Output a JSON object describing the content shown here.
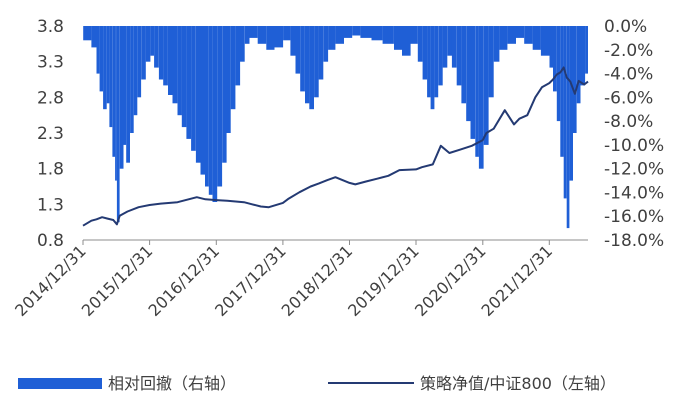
{
  "chart_data": {
    "type": "bar+line",
    "x_ticks": [
      "2014/12/31",
      "2015/12/31",
      "2016/12/31",
      "2017/12/31",
      "2018/12/31",
      "2019/12/31",
      "2020/12/31",
      "2021/12/31"
    ],
    "x_range": [
      "2014-12-31",
      "2022-07-31"
    ],
    "left_axis": {
      "ticks": [
        "3.8",
        "3.3",
        "2.8",
        "2.3",
        "1.8",
        "1.3",
        "0.8"
      ],
      "ylim": [
        0.8,
        3.8
      ]
    },
    "right_axis": {
      "ticks": [
        "0.0%",
        "-2.0%",
        "-4.0%",
        "-6.0%",
        "-8.0%",
        "-10.0%",
        "-12.0%",
        "-14.0%",
        "-16.0%",
        "-18.0%"
      ],
      "ylim": [
        -18,
        0
      ]
    },
    "series": [
      {
        "name": "相对回撤（右轴）",
        "type": "bar",
        "axis": "right",
        "color": "#1f5fd6",
        "points": [
          [
            "2015-01-01",
            -1.2
          ],
          [
            "2015-02-15",
            -1.8
          ],
          [
            "2015-03-15",
            -4.0
          ],
          [
            "2015-04-01",
            -5.5
          ],
          [
            "2015-04-20",
            -7.0
          ],
          [
            "2015-05-10",
            -6.5
          ],
          [
            "2015-05-25",
            -8.5
          ],
          [
            "2015-06-10",
            -11.0
          ],
          [
            "2015-06-25",
            -13.0
          ],
          [
            "2015-07-05",
            -16.5
          ],
          [
            "2015-07-20",
            -12.0
          ],
          [
            "2015-08-10",
            -10.0
          ],
          [
            "2015-08-25",
            -11.5
          ],
          [
            "2015-09-15",
            -9.0
          ],
          [
            "2015-10-05",
            -7.5
          ],
          [
            "2015-10-25",
            -6.0
          ],
          [
            "2015-11-15",
            -4.5
          ],
          [
            "2015-12-10",
            -3.0
          ],
          [
            "2016-01-05",
            -2.5
          ],
          [
            "2016-01-25",
            -3.5
          ],
          [
            "2016-02-20",
            -4.5
          ],
          [
            "2016-03-15",
            -5.0
          ],
          [
            "2016-04-10",
            -5.8
          ],
          [
            "2016-05-05",
            -6.5
          ],
          [
            "2016-06-01",
            -7.5
          ],
          [
            "2016-06-25",
            -8.5
          ],
          [
            "2016-07-20",
            -9.5
          ],
          [
            "2016-08-15",
            -10.5
          ],
          [
            "2016-09-10",
            -11.5
          ],
          [
            "2016-10-05",
            -12.5
          ],
          [
            "2016-10-30",
            -13.5
          ],
          [
            "2016-11-20",
            -14.2
          ],
          [
            "2016-12-10",
            -14.8
          ],
          [
            "2017-01-05",
            -13.5
          ],
          [
            "2017-02-01",
            -11.5
          ],
          [
            "2017-02-25",
            -9.0
          ],
          [
            "2017-03-20",
            -7.0
          ],
          [
            "2017-04-15",
            -5.0
          ],
          [
            "2017-05-10",
            -3.0
          ],
          [
            "2017-06-05",
            -1.5
          ],
          [
            "2017-07-01",
            -1.0
          ],
          [
            "2017-08-15",
            -1.5
          ],
          [
            "2017-10-01",
            -2.0
          ],
          [
            "2017-11-15",
            -1.8
          ],
          [
            "2018-01-01",
            -1.2
          ],
          [
            "2018-02-10",
            -2.5
          ],
          [
            "2018-03-10",
            -4.0
          ],
          [
            "2018-04-05",
            -5.5
          ],
          [
            "2018-05-01",
            -6.5
          ],
          [
            "2018-05-25",
            -7.0
          ],
          [
            "2018-06-20",
            -6.0
          ],
          [
            "2018-07-15",
            -4.5
          ],
          [
            "2018-08-10",
            -3.0
          ],
          [
            "2018-09-05",
            -2.0
          ],
          [
            "2018-10-15",
            -1.5
          ],
          [
            "2018-12-01",
            -1.0
          ],
          [
            "2019-01-15",
            -0.8
          ],
          [
            "2019-03-01",
            -1.0
          ],
          [
            "2019-05-01",
            -1.2
          ],
          [
            "2019-07-01",
            -1.5
          ],
          [
            "2019-09-01",
            -2.0
          ],
          [
            "2019-10-15",
            -2.5
          ],
          [
            "2019-12-01",
            -1.5
          ],
          [
            "2020-01-10",
            -3.0
          ],
          [
            "2020-02-05",
            -4.5
          ],
          [
            "2020-03-01",
            -6.0
          ],
          [
            "2020-03-20",
            -7.0
          ],
          [
            "2020-04-10",
            -6.0
          ],
          [
            "2020-05-01",
            -5.0
          ],
          [
            "2020-05-25",
            -3.5
          ],
          [
            "2020-06-20",
            -2.5
          ],
          [
            "2020-07-15",
            -3.5
          ],
          [
            "2020-08-10",
            -5.0
          ],
          [
            "2020-09-05",
            -6.5
          ],
          [
            "2020-10-01",
            -8.0
          ],
          [
            "2020-10-25",
            -9.5
          ],
          [
            "2020-11-20",
            -11.0
          ],
          [
            "2020-12-10",
            -12.0
          ],
          [
            "2021-01-05",
            -10.0
          ],
          [
            "2021-02-01",
            -6.0
          ],
          [
            "2021-03-01",
            -3.0
          ],
          [
            "2021-04-01",
            -2.0
          ],
          [
            "2021-05-15",
            -1.5
          ],
          [
            "2021-07-01",
            -1.0
          ],
          [
            "2021-08-15",
            -1.5
          ],
          [
            "2021-10-01",
            -2.0
          ],
          [
            "2021-11-15",
            -2.5
          ],
          [
            "2022-01-01",
            -3.5
          ],
          [
            "2022-01-20",
            -5.5
          ],
          [
            "2022-02-10",
            -8.0
          ],
          [
            "2022-03-01",
            -11.0
          ],
          [
            "2022-03-20",
            -14.5
          ],
          [
            "2022-04-05",
            -17.0
          ],
          [
            "2022-04-20",
            -13.0
          ],
          [
            "2022-05-10",
            -9.0
          ],
          [
            "2022-05-30",
            -6.5
          ],
          [
            "2022-06-20",
            -5.0
          ],
          [
            "2022-07-15",
            -4.0
          ]
        ]
      },
      {
        "name": "策略净值/中证800（左轴）",
        "type": "line",
        "axis": "left",
        "color": "#243a73",
        "points": [
          [
            "2014-12-31",
            1.0
          ],
          [
            "2015-02-15",
            1.07
          ],
          [
            "2015-03-15",
            1.09
          ],
          [
            "2015-04-15",
            1.12
          ],
          [
            "2015-05-15",
            1.1
          ],
          [
            "2015-06-15",
            1.08
          ],
          [
            "2015-07-05",
            1.02
          ],
          [
            "2015-07-20",
            1.14
          ],
          [
            "2015-09-01",
            1.2
          ],
          [
            "2015-11-01",
            1.26
          ],
          [
            "2015-12-31",
            1.29
          ],
          [
            "2016-03-01",
            1.31
          ],
          [
            "2016-06-01",
            1.33
          ],
          [
            "2016-08-01",
            1.37
          ],
          [
            "2016-09-15",
            1.4
          ],
          [
            "2016-11-01",
            1.37
          ],
          [
            "2016-12-31",
            1.36
          ],
          [
            "2017-03-01",
            1.35
          ],
          [
            "2017-06-01",
            1.33
          ],
          [
            "2017-07-15",
            1.3
          ],
          [
            "2017-09-01",
            1.27
          ],
          [
            "2017-10-15",
            1.26
          ],
          [
            "2017-12-31",
            1.32
          ],
          [
            "2018-02-01",
            1.38
          ],
          [
            "2018-04-01",
            1.47
          ],
          [
            "2018-06-01",
            1.55
          ],
          [
            "2018-07-15",
            1.59
          ],
          [
            "2018-09-01",
            1.64
          ],
          [
            "2018-10-15",
            1.68
          ],
          [
            "2018-12-31",
            1.6
          ],
          [
            "2019-02-01",
            1.58
          ],
          [
            "2019-04-01",
            1.62
          ],
          [
            "2019-06-01",
            1.66
          ],
          [
            "2019-08-01",
            1.7
          ],
          [
            "2019-10-01",
            1.78
          ],
          [
            "2019-12-31",
            1.79
          ],
          [
            "2020-02-01",
            1.82
          ],
          [
            "2020-04-01",
            1.86
          ],
          [
            "2020-05-15",
            2.12
          ],
          [
            "2020-07-01",
            2.02
          ],
          [
            "2020-09-01",
            2.07
          ],
          [
            "2020-11-01",
            2.12
          ],
          [
            "2020-12-31",
            2.2
          ],
          [
            "2021-01-20",
            2.3
          ],
          [
            "2021-03-01",
            2.36
          ],
          [
            "2021-05-01",
            2.62
          ],
          [
            "2021-06-20",
            2.42
          ],
          [
            "2021-07-20",
            2.5
          ],
          [
            "2021-09-01",
            2.55
          ],
          [
            "2021-10-15",
            2.8
          ],
          [
            "2021-11-20",
            2.94
          ],
          [
            "2021-12-31",
            3.0
          ],
          [
            "2022-01-20",
            3.05
          ],
          [
            "2022-02-10",
            3.12
          ],
          [
            "2022-03-01",
            3.15
          ],
          [
            "2022-03-20",
            3.22
          ],
          [
            "2022-04-05",
            3.08
          ],
          [
            "2022-04-25",
            3.02
          ],
          [
            "2022-05-20",
            2.85
          ],
          [
            "2022-06-10",
            3.03
          ],
          [
            "2022-07-10",
            2.98
          ],
          [
            "2022-07-31",
            3.02
          ]
        ]
      }
    ]
  }
}
